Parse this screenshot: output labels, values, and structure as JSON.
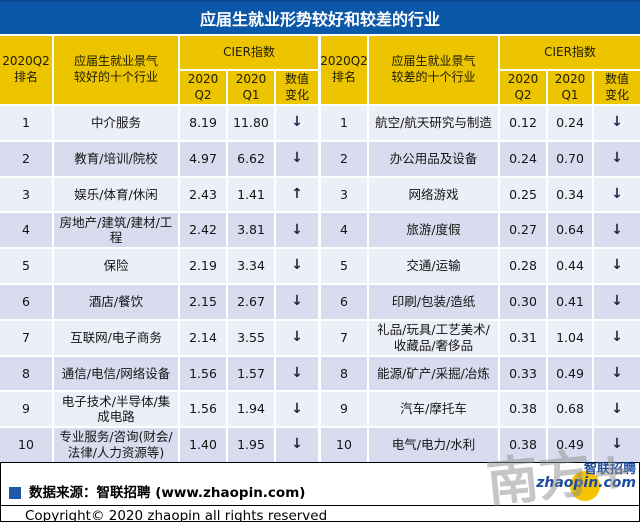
{
  "title": "应届生就业形势较好和较差的行业",
  "colors": {
    "title_bg": "#0b57a8",
    "header_yellow": "#edc400",
    "row_light": "#edeff8",
    "row_dark": "#d8dcee",
    "arrow": "#1b2747",
    "source_square_blue": "#2257a6",
    "logo_blue": "#1d4ba0",
    "logo_yellow": "#f6c500"
  },
  "chart_data": [
    {
      "type": "table",
      "side": "better",
      "header": {
        "rank": [
          "2020Q2",
          "排名"
        ],
        "industry": [
          "应届生就业景气",
          "较好的十个行业"
        ],
        "group": "CIER指数",
        "subcols": [
          [
            "2020",
            "Q2"
          ],
          [
            "2020",
            "Q1"
          ],
          [
            "数值",
            "变化"
          ]
        ]
      },
      "columns": [
        "2020Q2排名",
        "应届生就业景气较好的十个行业",
        "CIER指数 2020Q2",
        "CIER指数 2020Q1",
        "数值变化"
      ],
      "rows": [
        {
          "rank": "1",
          "industry": "中介服务",
          "q2": "8.19",
          "q1": "11.80",
          "arrow": "↓",
          "direction": "down"
        },
        {
          "rank": "2",
          "industry": "教育/培训/院校",
          "q2": "4.97",
          "q1": "6.62",
          "arrow": "↓",
          "direction": "down"
        },
        {
          "rank": "3",
          "industry": "娱乐/体育/休闲",
          "q2": "2.43",
          "q1": "1.41",
          "arrow": "↑",
          "direction": "up"
        },
        {
          "rank": "4",
          "industry": "房地产/建筑/建材/工程",
          "q2": "2.42",
          "q1": "3.81",
          "arrow": "↓",
          "direction": "down"
        },
        {
          "rank": "5",
          "industry": "保险",
          "q2": "2.19",
          "q1": "3.34",
          "arrow": "↓",
          "direction": "down"
        },
        {
          "rank": "6",
          "industry": "酒店/餐饮",
          "q2": "2.15",
          "q1": "2.67",
          "arrow": "↓",
          "direction": "down"
        },
        {
          "rank": "7",
          "industry": "互联网/电子商务",
          "q2": "2.14",
          "q1": "3.55",
          "arrow": "↓",
          "direction": "down"
        },
        {
          "rank": "8",
          "industry": "通信/电信/网络设备",
          "q2": "1.56",
          "q1": "1.57",
          "arrow": "↓",
          "direction": "down"
        },
        {
          "rank": "9",
          "industry": "电子技术/半导体/集成电路",
          "q2": "1.56",
          "q1": "1.94",
          "arrow": "↓",
          "direction": "down"
        },
        {
          "rank": "10",
          "industry": "专业服务/咨询(财会/法律/人力资源等)",
          "q2": "1.40",
          "q1": "1.95",
          "arrow": "↓",
          "direction": "down"
        }
      ]
    },
    {
      "type": "table",
      "side": "worse",
      "header": {
        "rank": [
          "2020Q2",
          "排名"
        ],
        "industry": [
          "应届生就业景气",
          "较差的十个行业"
        ],
        "group": "CIER指数",
        "subcols": [
          [
            "2020",
            "Q2"
          ],
          [
            "2020",
            "Q1"
          ],
          [
            "数值",
            "变化"
          ]
        ]
      },
      "columns": [
        "2020Q2排名",
        "应届生就业景气较差的十个行业",
        "CIER指数 2020Q2",
        "CIER指数 2020Q1",
        "数值变化"
      ],
      "rows": [
        {
          "rank": "1",
          "industry": "航空/航天研究与制造",
          "q2": "0.12",
          "q1": "0.24",
          "arrow": "↓",
          "direction": "down"
        },
        {
          "rank": "2",
          "industry": "办公用品及设备",
          "q2": "0.24",
          "q1": "0.70",
          "arrow": "↓",
          "direction": "down"
        },
        {
          "rank": "3",
          "industry": "网络游戏",
          "q2": "0.25",
          "q1": "0.34",
          "arrow": "↓",
          "direction": "down"
        },
        {
          "rank": "4",
          "industry": "旅游/度假",
          "q2": "0.27",
          "q1": "0.64",
          "arrow": "↓",
          "direction": "down"
        },
        {
          "rank": "5",
          "industry": "交通/运输",
          "q2": "0.28",
          "q1": "0.44",
          "arrow": "↓",
          "direction": "down"
        },
        {
          "rank": "6",
          "industry": "印刷/包装/造纸",
          "q2": "0.30",
          "q1": "0.41",
          "arrow": "↓",
          "direction": "down"
        },
        {
          "rank": "7",
          "industry": "礼品/玩具/工艺美术/收藏品/奢侈品",
          "q2": "0.31",
          "q1": "1.04",
          "arrow": "↓",
          "direction": "down"
        },
        {
          "rank": "8",
          "industry": "能源/矿产/采掘/冶炼",
          "q2": "0.33",
          "q1": "0.49",
          "arrow": "↓",
          "direction": "down"
        },
        {
          "rank": "9",
          "industry": "汽车/摩托车",
          "q2": "0.38",
          "q1": "0.68",
          "arrow": "↓",
          "direction": "down"
        },
        {
          "rank": "10",
          "industry": "电气/电力/水利",
          "q2": "0.38",
          "q1": "0.49",
          "arrow": "↓",
          "direction": "down"
        }
      ]
    }
  ],
  "footer": {
    "source_label": "数据来源：智联招聘 (www.zhaopin.com)",
    "copyright": "Copyright© 2020 zhaopin all rights reserved"
  },
  "watermark": {
    "text": "南方+",
    "logo_cn": "智联招聘",
    "logo_en": "zhaopin.com"
  }
}
